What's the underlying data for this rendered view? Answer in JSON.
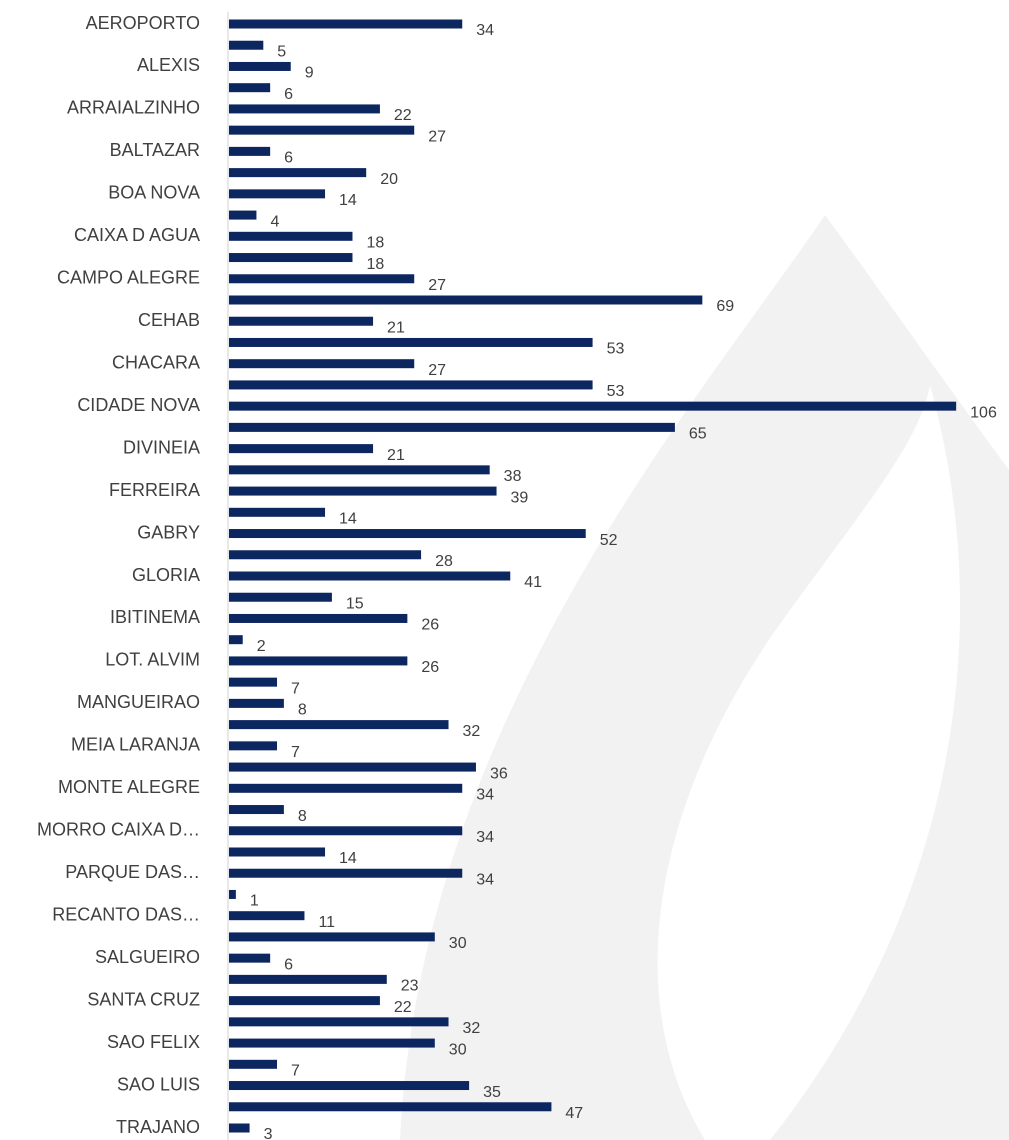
{
  "chart_data": {
    "type": "bar",
    "orientation": "horizontal",
    "color": "#0c2660",
    "categories": [
      "AEROPORTO",
      null,
      "ALEXIS",
      null,
      "ARRAIALZINHO",
      null,
      "BALTAZAR",
      null,
      "BOA NOVA",
      null,
      "CAIXA D AGUA",
      null,
      "CAMPO ALEGRE",
      null,
      "CEHAB",
      null,
      "CHACARA",
      null,
      "CIDADE NOVA",
      null,
      "DIVINEIA",
      null,
      "FERREIRA",
      null,
      "GABRY",
      null,
      "GLORIA",
      null,
      "IBITINEMA",
      null,
      "LOT. ALVIM",
      null,
      "MANGUEIRAO",
      null,
      "MEIA LARANJA",
      null,
      "MONTE ALEGRE",
      null,
      "MORRO CAIXA D…",
      null,
      "PARQUE DAS…",
      null,
      "RECANTO DAS…",
      null,
      "SALGUEIRO",
      null,
      "SANTA CRUZ",
      null,
      "SAO FELIX",
      null,
      "SAO LUIS",
      null,
      "TRAJANO"
    ],
    "values": [
      34,
      5,
      9,
      6,
      22,
      27,
      6,
      20,
      14,
      4,
      18,
      18,
      27,
      69,
      21,
      53,
      27,
      53,
      106,
      65,
      21,
      38,
      39,
      14,
      52,
      28,
      41,
      15,
      26,
      2,
      26,
      7,
      8,
      32,
      7,
      36,
      34,
      8,
      34,
      14,
      34,
      1,
      11,
      30,
      6,
      23,
      22,
      32,
      30,
      7,
      35,
      47,
      3
    ]
  }
}
